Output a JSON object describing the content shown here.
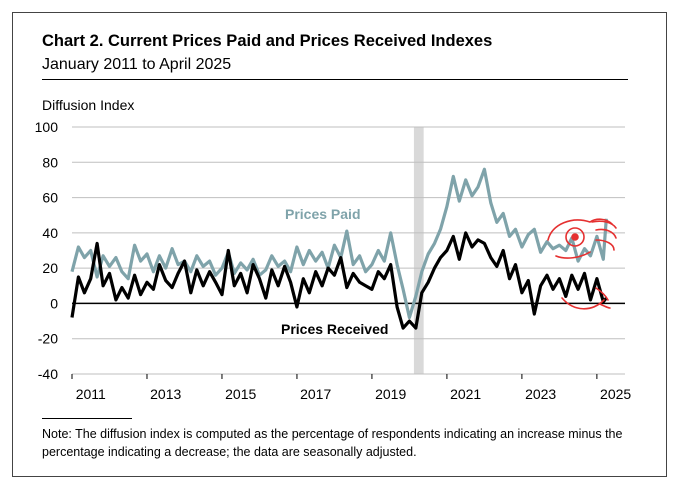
{
  "title": "Chart 2. Current Prices Paid and Prices Received Indexes",
  "subtitle": "January 2011 to April 2025",
  "note": "Note: The diffusion index is computed as the percentage of respondents indicating an increase minus the percentage indicating a decrease; the data are seasonally adjusted.",
  "chart_data": {
    "type": "line",
    "ylabel": "Diffusion Index",
    "ylim": [
      -40,
      100
    ],
    "y_ticks": [
      "100",
      "80",
      "60",
      "40",
      "20",
      "0",
      "-20",
      "-40"
    ],
    "x_range": [
      2011.0,
      2025.75
    ],
    "x_ticks": [
      "2011",
      "2013",
      "2015",
      "2017",
      "2019",
      "2021",
      "2023",
      "2025"
    ],
    "recession_band": [
      2020.12,
      2020.38
    ],
    "grid": true,
    "series": [
      {
        "name": "Prices Paid",
        "color": "#7fa3aa",
        "x": [
          2011.0,
          2011.17,
          2011.33,
          2011.5,
          2011.67,
          2011.83,
          2012.0,
          2012.17,
          2012.33,
          2012.5,
          2012.67,
          2012.83,
          2013.0,
          2013.17,
          2013.33,
          2013.5,
          2013.67,
          2013.83,
          2014.0,
          2014.17,
          2014.33,
          2014.5,
          2014.67,
          2014.83,
          2015.0,
          2015.17,
          2015.33,
          2015.5,
          2015.67,
          2015.83,
          2016.0,
          2016.17,
          2016.33,
          2016.5,
          2016.67,
          2016.83,
          2017.0,
          2017.17,
          2017.33,
          2017.5,
          2017.67,
          2017.83,
          2018.0,
          2018.17,
          2018.33,
          2018.5,
          2018.67,
          2018.83,
          2019.0,
          2019.17,
          2019.33,
          2019.5,
          2019.67,
          2019.83,
          2020.0,
          2020.17,
          2020.33,
          2020.5,
          2020.67,
          2020.83,
          2021.0,
          2021.17,
          2021.33,
          2021.5,
          2021.67,
          2021.83,
          2022.0,
          2022.17,
          2022.33,
          2022.5,
          2022.67,
          2022.83,
          2023.0,
          2023.17,
          2023.33,
          2023.5,
          2023.67,
          2023.83,
          2024.0,
          2024.17,
          2024.33,
          2024.5,
          2024.67,
          2024.83,
          2025.0,
          2025.17,
          2025.25
        ],
        "values": [
          18,
          32,
          26,
          30,
          15,
          27,
          21,
          26,
          18,
          14,
          33,
          24,
          28,
          18,
          27,
          20,
          31,
          22,
          24,
          18,
          27,
          21,
          24,
          16,
          20,
          29,
          17,
          23,
          19,
          25,
          16,
          19,
          27,
          21,
          24,
          18,
          32,
          22,
          30,
          24,
          29,
          20,
          33,
          26,
          41,
          22,
          27,
          18,
          22,
          30,
          24,
          40,
          22,
          8,
          -8,
          4,
          18,
          28,
          34,
          42,
          55,
          72,
          58,
          70,
          61,
          66,
          76,
          57,
          46,
          51,
          38,
          42,
          32,
          39,
          42,
          29,
          35,
          31,
          33,
          30,
          37,
          24,
          31,
          27,
          38,
          25,
          48
        ]
      },
      {
        "name": "Prices Received",
        "color": "#000000",
        "x": [
          2011.0,
          2011.17,
          2011.33,
          2011.5,
          2011.67,
          2011.83,
          2012.0,
          2012.17,
          2012.33,
          2012.5,
          2012.67,
          2012.83,
          2013.0,
          2013.17,
          2013.33,
          2013.5,
          2013.67,
          2013.83,
          2014.0,
          2014.17,
          2014.33,
          2014.5,
          2014.67,
          2014.83,
          2015.0,
          2015.17,
          2015.33,
          2015.5,
          2015.67,
          2015.83,
          2016.0,
          2016.17,
          2016.33,
          2016.5,
          2016.67,
          2016.83,
          2017.0,
          2017.17,
          2017.33,
          2017.5,
          2017.67,
          2017.83,
          2018.0,
          2018.17,
          2018.33,
          2018.5,
          2018.67,
          2018.83,
          2019.0,
          2019.17,
          2019.33,
          2019.5,
          2019.67,
          2019.83,
          2020.0,
          2020.17,
          2020.33,
          2020.5,
          2020.67,
          2020.83,
          2021.0,
          2021.17,
          2021.33,
          2021.5,
          2021.67,
          2021.83,
          2022.0,
          2022.17,
          2022.33,
          2022.5,
          2022.67,
          2022.83,
          2023.0,
          2023.17,
          2023.33,
          2023.5,
          2023.67,
          2023.83,
          2024.0,
          2024.17,
          2024.33,
          2024.5,
          2024.67,
          2024.83,
          2025.0,
          2025.17,
          2025.25
        ],
        "values": [
          -8,
          15,
          6,
          14,
          34,
          10,
          17,
          2,
          9,
          3,
          16,
          5,
          12,
          8,
          22,
          13,
          9,
          17,
          24,
          6,
          19,
          10,
          18,
          12,
          5,
          30,
          10,
          17,
          6,
          22,
          14,
          3,
          19,
          10,
          21,
          12,
          -2,
          14,
          6,
          18,
          10,
          20,
          16,
          26,
          9,
          17,
          12,
          10,
          8,
          18,
          14,
          22,
          -2,
          -14,
          -10,
          -14,
          6,
          12,
          20,
          26,
          30,
          38,
          25,
          40,
          32,
          36,
          34,
          26,
          21,
          30,
          14,
          22,
          6,
          13,
          -6,
          10,
          16,
          8,
          14,
          4,
          16,
          8,
          17,
          2,
          14,
          1,
          3
        ]
      }
    ],
    "annotations": [
      {
        "text": "Prices Paid"
      },
      {
        "text": "Prices Received"
      }
    ]
  }
}
